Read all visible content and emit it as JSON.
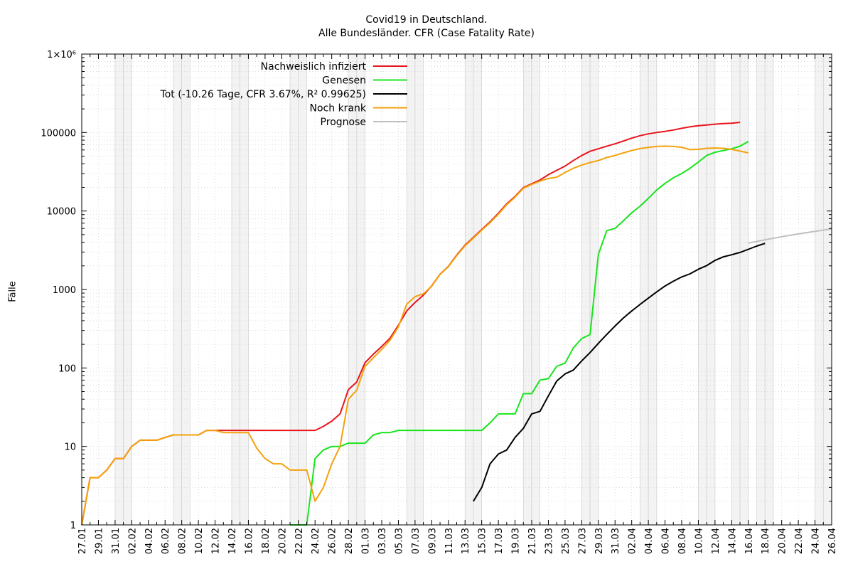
{
  "title_line1": "Covid19 in Deutschland.",
  "title_line2": "Alle Bundesländer. CFR (Case Fatality Rate)",
  "chart_data": {
    "type": "line",
    "ylabel": "Fälle",
    "yscale": "log",
    "ylim": [
      1,
      1000000
    ],
    "y_tick_labels": [
      "1",
      "10",
      "100",
      "1000",
      "10000",
      "100000",
      "1×10⁶"
    ],
    "x_tick_labels": [
      "27.01",
      "29.01",
      "31.01",
      "02.02",
      "04.02",
      "06.02",
      "08.02",
      "10.02",
      "12.02",
      "14.02",
      "16.02",
      "18.02",
      "20.02",
      "22.02",
      "24.02",
      "26.02",
      "28.02",
      "01.03",
      "03.03",
      "05.03",
      "07.03",
      "09.03",
      "11.03",
      "13.03",
      "15.03",
      "17.03",
      "19.03",
      "21.03",
      "23.03",
      "25.03",
      "27.03",
      "29.03",
      "31.03",
      "02.04",
      "04.04",
      "06.04",
      "08.04",
      "10.04",
      "12.04",
      "14.04",
      "16.04",
      "18.04",
      "20.04",
      "22.04",
      "24.04",
      "26.04"
    ],
    "x_range_days": [
      0,
      90
    ],
    "weekend_days": [
      4,
      5,
      11,
      12,
      18,
      19,
      25,
      26,
      32,
      33,
      39,
      40,
      46,
      47,
      53,
      54,
      60,
      61,
      67,
      68,
      74,
      75,
      78,
      79,
      81,
      82,
      88,
      89
    ],
    "grid": true,
    "legend_position": "top-left",
    "series": [
      {
        "name": "Nachweislich infiziert",
        "color": "#e8141c",
        "points": [
          [
            0,
            1
          ],
          [
            1,
            4
          ],
          [
            2,
            4
          ],
          [
            3,
            5
          ],
          [
            4,
            7
          ],
          [
            5,
            7
          ],
          [
            6,
            10
          ],
          [
            7,
            12
          ],
          [
            8,
            12
          ],
          [
            9,
            12
          ],
          [
            10,
            13
          ],
          [
            11,
            14
          ],
          [
            12,
            14
          ],
          [
            13,
            14
          ],
          [
            14,
            14
          ],
          [
            15,
            16
          ],
          [
            16,
            16
          ],
          [
            17,
            16
          ],
          [
            18,
            16
          ],
          [
            19,
            16
          ],
          [
            20,
            16
          ],
          [
            21,
            16
          ],
          [
            22,
            16
          ],
          [
            23,
            16
          ],
          [
            24,
            16
          ],
          [
            25,
            16
          ],
          [
            26,
            16
          ],
          [
            27,
            16
          ],
          [
            28,
            16
          ],
          [
            29,
            18
          ],
          [
            30,
            21
          ],
          [
            31,
            26
          ],
          [
            32,
            53
          ],
          [
            33,
            66
          ],
          [
            34,
            117
          ],
          [
            35,
            150
          ],
          [
            36,
            188
          ],
          [
            37,
            240
          ],
          [
            38,
            349
          ],
          [
            39,
            534
          ],
          [
            40,
            684
          ],
          [
            41,
            847
          ],
          [
            42,
            1112
          ],
          [
            43,
            1565
          ],
          [
            44,
            1966
          ],
          [
            45,
            2745
          ],
          [
            46,
            3675
          ],
          [
            47,
            4599
          ],
          [
            48,
            5813
          ],
          [
            49,
            7272
          ],
          [
            50,
            9367
          ],
          [
            51,
            12327
          ],
          [
            52,
            15320
          ],
          [
            53,
            19848
          ],
          [
            54,
            22213
          ],
          [
            55,
            24873
          ],
          [
            56,
            29056
          ],
          [
            57,
            32991
          ],
          [
            58,
            37323
          ],
          [
            59,
            43938
          ],
          [
            60,
            50871
          ],
          [
            61,
            57695
          ],
          [
            62,
            62095
          ],
          [
            63,
            66885
          ],
          [
            64,
            71808
          ],
          [
            65,
            77872
          ],
          [
            66,
            84794
          ],
          [
            67,
            91159
          ],
          [
            68,
            96092
          ],
          [
            69,
            100123
          ],
          [
            70,
            103374
          ],
          [
            71,
            107663
          ],
          [
            72,
            113296
          ],
          [
            73,
            118181
          ],
          [
            74,
            122171
          ],
          [
            75,
            124908
          ],
          [
            76,
            127854
          ],
          [
            77,
            130072
          ],
          [
            78,
            131359
          ],
          [
            79,
            134753
          ]
        ]
      },
      {
        "name": "Genesen",
        "color": "#18e41c",
        "points": [
          [
            25,
            1
          ],
          [
            26,
            1
          ],
          [
            27,
            1
          ],
          [
            28,
            7
          ],
          [
            29,
            9
          ],
          [
            30,
            10
          ],
          [
            31,
            10
          ],
          [
            32,
            11
          ],
          [
            33,
            11
          ],
          [
            34,
            11
          ],
          [
            35,
            14
          ],
          [
            36,
            15
          ],
          [
            37,
            15
          ],
          [
            38,
            16
          ],
          [
            39,
            16
          ],
          [
            40,
            16
          ],
          [
            41,
            16
          ],
          [
            42,
            16
          ],
          [
            43,
            16
          ],
          [
            44,
            16
          ],
          [
            45,
            16
          ],
          [
            46,
            16
          ],
          [
            47,
            16
          ],
          [
            48,
            16
          ],
          [
            49,
            20
          ],
          [
            50,
            26
          ],
          [
            51,
            26
          ],
          [
            52,
            26
          ],
          [
            53,
            47
          ],
          [
            54,
            47
          ],
          [
            55,
            70
          ],
          [
            56,
            73
          ],
          [
            57,
            105
          ],
          [
            58,
            115
          ],
          [
            59,
            180
          ],
          [
            60,
            237
          ],
          [
            61,
            266
          ],
          [
            62,
            2800
          ],
          [
            63,
            5600
          ],
          [
            64,
            6000
          ],
          [
            65,
            7500
          ],
          [
            66,
            9500
          ],
          [
            67,
            11500
          ],
          [
            68,
            14500
          ],
          [
            69,
            18500
          ],
          [
            70,
            22500
          ],
          [
            71,
            26500
          ],
          [
            72,
            30000
          ],
          [
            73,
            35000
          ],
          [
            74,
            42000
          ],
          [
            75,
            51000
          ],
          [
            76,
            56000
          ],
          [
            77,
            59000
          ],
          [
            78,
            62000
          ],
          [
            79,
            67000
          ],
          [
            80,
            77000
          ]
        ]
      },
      {
        "name": "Tot (-10.26 Tage, CFR 3.67%, R² 0.99625)",
        "color": "#000000",
        "points": [
          [
            47,
            2
          ],
          [
            48,
            3
          ],
          [
            49,
            6
          ],
          [
            50,
            8
          ],
          [
            51,
            9
          ],
          [
            52,
            13
          ],
          [
            53,
            17
          ],
          [
            54,
            26
          ],
          [
            55,
            28
          ],
          [
            56,
            44
          ],
          [
            57,
            68
          ],
          [
            58,
            84
          ],
          [
            59,
            94
          ],
          [
            60,
            123
          ],
          [
            61,
            157
          ],
          [
            62,
            206
          ],
          [
            63,
            267
          ],
          [
            64,
            342
          ],
          [
            65,
            433
          ],
          [
            66,
            533
          ],
          [
            67,
            645
          ],
          [
            68,
            775
          ],
          [
            69,
            931
          ],
          [
            70,
            1107
          ],
          [
            71,
            1275
          ],
          [
            72,
            1444
          ],
          [
            73,
            1584
          ],
          [
            74,
            1810
          ],
          [
            75,
            2016
          ],
          [
            76,
            2349
          ],
          [
            77,
            2607
          ],
          [
            78,
            2767
          ],
          [
            79,
            2969
          ],
          [
            80,
            3254
          ],
          [
            81,
            3569
          ],
          [
            82,
            3868
          ]
        ]
      },
      {
        "name": "Noch krank",
        "color": "#f4a20c",
        "points": [
          [
            0,
            1
          ],
          [
            1,
            4
          ],
          [
            2,
            4
          ],
          [
            3,
            5
          ],
          [
            4,
            7
          ],
          [
            5,
            7
          ],
          [
            6,
            10
          ],
          [
            7,
            12
          ],
          [
            8,
            12
          ],
          [
            9,
            12
          ],
          [
            10,
            13
          ],
          [
            11,
            14
          ],
          [
            12,
            14
          ],
          [
            13,
            14
          ],
          [
            14,
            14
          ],
          [
            15,
            16
          ],
          [
            16,
            16
          ],
          [
            17,
            15
          ],
          [
            18,
            15
          ],
          [
            19,
            15
          ],
          [
            20,
            15
          ],
          [
            21,
            9.5
          ],
          [
            22,
            7
          ],
          [
            23,
            6
          ],
          [
            24,
            6
          ],
          [
            25,
            5
          ],
          [
            26,
            5
          ],
          [
            27,
            5
          ],
          [
            28,
            2
          ],
          [
            29,
            3
          ],
          [
            30,
            6
          ],
          [
            31,
            10
          ],
          [
            32,
            40
          ],
          [
            33,
            52
          ],
          [
            34,
            105
          ],
          [
            35,
            135
          ],
          [
            36,
            172
          ],
          [
            37,
            226
          ],
          [
            38,
            333
          ],
          [
            39,
            650
          ],
          [
            40,
            810
          ],
          [
            41,
            880
          ],
          [
            42,
            1100
          ],
          [
            43,
            1560
          ],
          [
            44,
            1950
          ],
          [
            45,
            2700
          ],
          [
            46,
            3600
          ],
          [
            47,
            4500
          ],
          [
            48,
            5700
          ],
          [
            49,
            7100
          ],
          [
            50,
            9100
          ],
          [
            51,
            12000
          ],
          [
            52,
            15000
          ],
          [
            53,
            19500
          ],
          [
            54,
            21800
          ],
          [
            55,
            24000
          ],
          [
            56,
            26000
          ],
          [
            57,
            27000
          ],
          [
            58,
            31000
          ],
          [
            59,
            35000
          ],
          [
            60,
            38500
          ],
          [
            61,
            41500
          ],
          [
            62,
            44000
          ],
          [
            63,
            48000
          ],
          [
            64,
            51000
          ],
          [
            65,
            55000
          ],
          [
            66,
            59000
          ],
          [
            67,
            62500
          ],
          [
            68,
            64500
          ],
          [
            69,
            66500
          ],
          [
            70,
            67000
          ],
          [
            71,
            66500
          ],
          [
            72,
            65000
          ],
          [
            73,
            60500
          ],
          [
            74,
            61000
          ],
          [
            75,
            63000
          ],
          [
            76,
            63500
          ],
          [
            77,
            63000
          ],
          [
            78,
            61000
          ],
          [
            79,
            58000
          ],
          [
            80,
            55000
          ]
        ]
      },
      {
        "name": "Prognose",
        "color": "#c0c0c0",
        "points": [
          [
            80,
            3900
          ],
          [
            82,
            4300
          ],
          [
            84,
            4700
          ],
          [
            86,
            5100
          ],
          [
            88,
            5500
          ],
          [
            90,
            5900
          ]
        ]
      }
    ]
  }
}
